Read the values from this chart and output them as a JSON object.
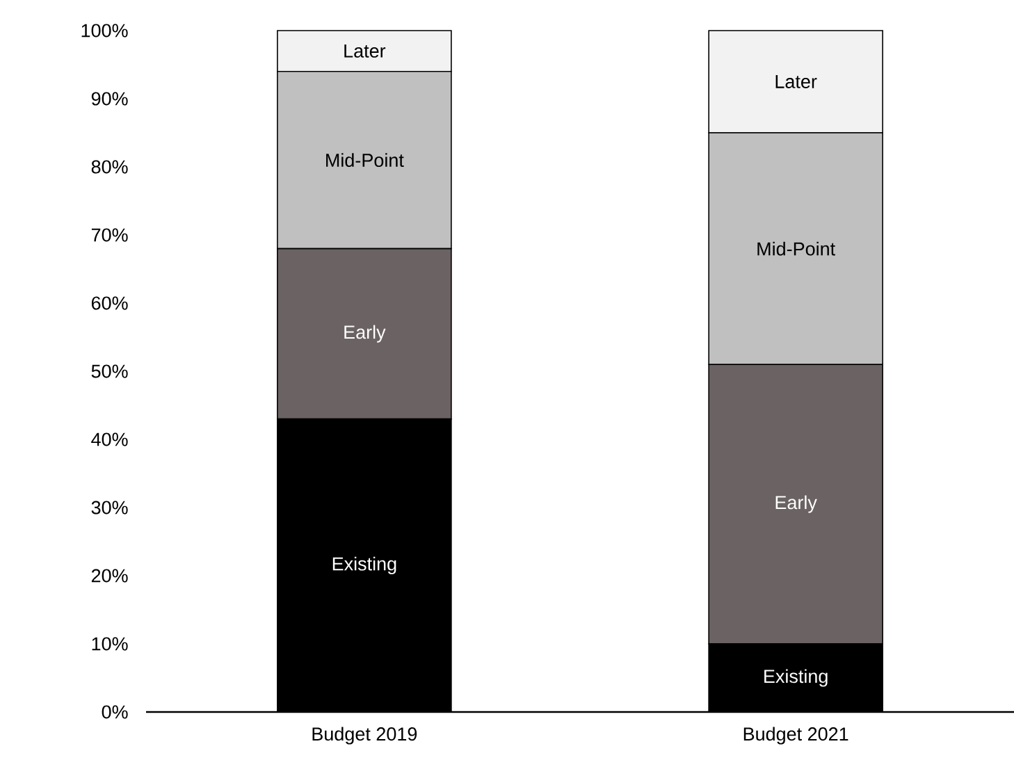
{
  "chart_data": {
    "type": "bar",
    "stacked": true,
    "categories": [
      "Budget 2019",
      "Budget 2021"
    ],
    "series": [
      {
        "name": "Existing",
        "color": "#000000",
        "values": [
          43,
          10
        ]
      },
      {
        "name": "Early",
        "color": "#6b6363",
        "values": [
          25,
          41
        ]
      },
      {
        "name": "Mid-Point",
        "color": "#c0c0c0",
        "values": [
          26,
          34
        ]
      },
      {
        "name": "Later",
        "color": "#f2f2f2",
        "values": [
          6,
          15
        ]
      }
    ],
    "ylim": [
      0,
      100
    ],
    "yticks": [
      {
        "value": 0,
        "label": "0%"
      },
      {
        "value": 10,
        "label": "10%"
      },
      {
        "value": 20,
        "label": "20%"
      },
      {
        "value": 30,
        "label": "30%"
      },
      {
        "value": 40,
        "label": "40%"
      },
      {
        "value": 50,
        "label": "50%"
      },
      {
        "value": 60,
        "label": "60%"
      },
      {
        "value": 70,
        "label": "70%"
      },
      {
        "value": 80,
        "label": "80%"
      },
      {
        "value": 90,
        "label": "90%"
      },
      {
        "value": 100,
        "label": "100%"
      }
    ],
    "grid": false,
    "legend": false
  }
}
